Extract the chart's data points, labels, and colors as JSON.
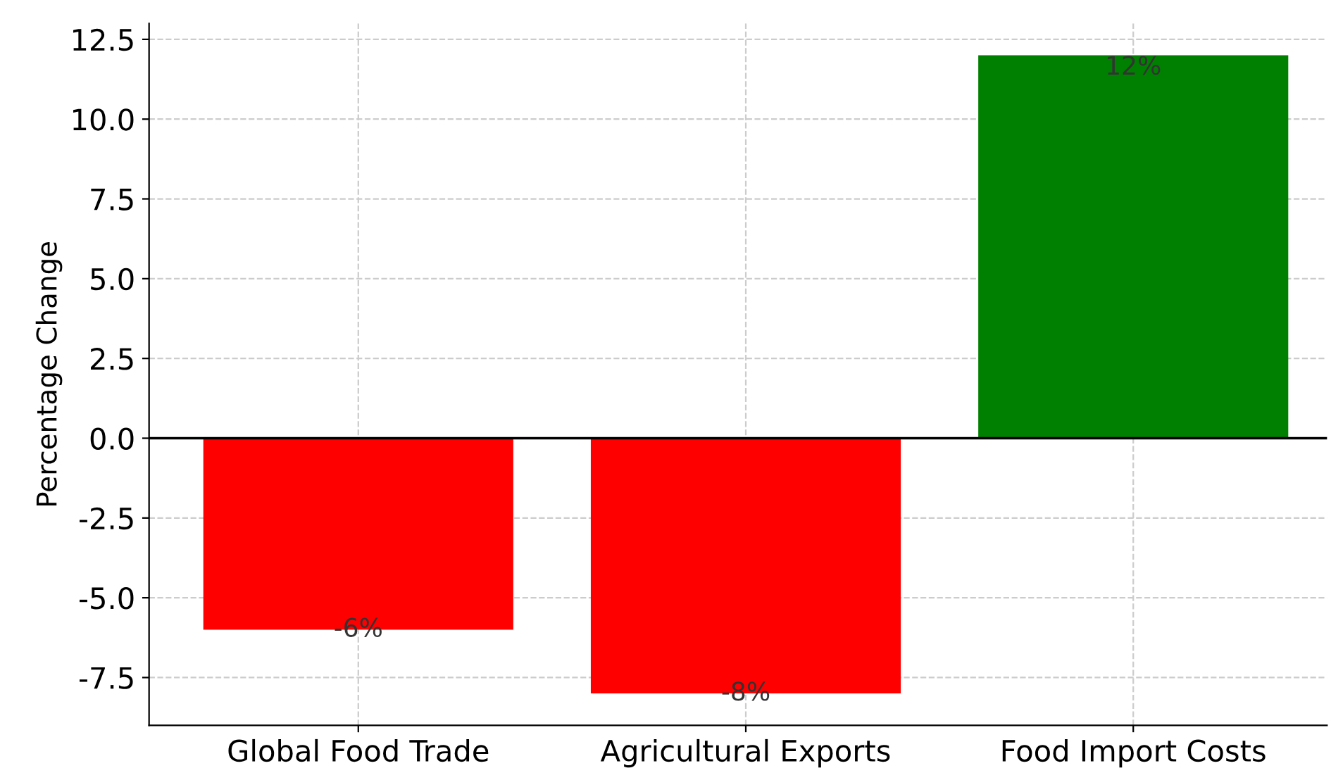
{
  "chart_data": {
    "type": "bar",
    "categories": [
      "Global Food Trade",
      "Agricultural Exports",
      "Food Import Costs"
    ],
    "values": [
      -6,
      -8,
      12
    ],
    "colors": [
      "#ff0000",
      "#ff0000",
      "#008000"
    ],
    "value_labels": [
      "-6%",
      "-8%",
      "12%"
    ],
    "ylabel": "Percentage Change",
    "ylim": [
      -9,
      13
    ],
    "yticks": [
      -7.5,
      {
        "value": -5,
        "label": "-5.0"
      },
      -2.5,
      {
        "value": 0,
        "label": "0.0"
      },
      2.5,
      {
        "value": 5,
        "label": "5.0"
      },
      7.5,
      {
        "value": 10,
        "label": "10.0"
      },
      12.5
    ],
    "ref_lines": [
      {
        "axis": "y",
        "value": 0,
        "color": "#000000"
      }
    ],
    "grid": true
  }
}
